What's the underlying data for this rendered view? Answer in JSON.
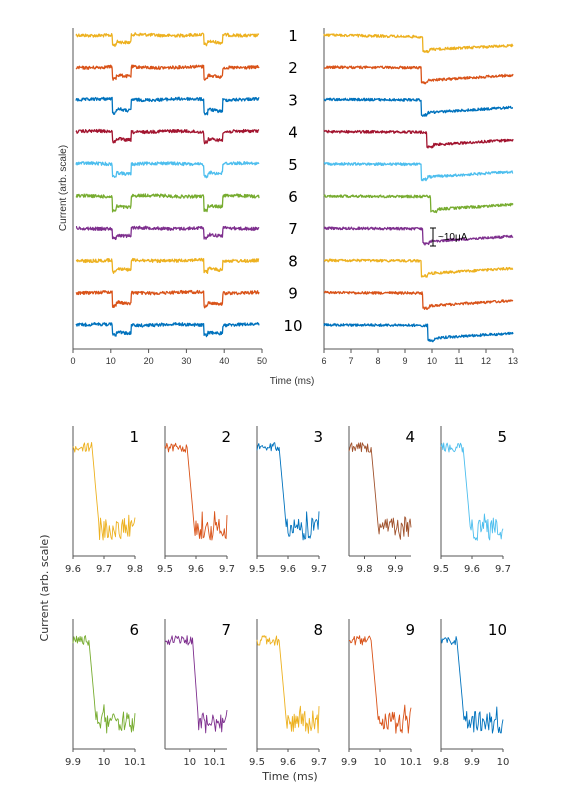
{
  "colors": [
    "#EDB120",
    "#D95319",
    "#0072BD",
    "#A2142F",
    "#4DBEEE",
    "#77AC30",
    "#7E2F8E",
    "#EDB120",
    "#D95319",
    "#0072BD"
  ],
  "inset_colors": [
    "#EDB120",
    "#D95319",
    "#0072BD",
    "#A0522D",
    "#4DBEEE",
    "#77AC30",
    "#7E2F8E",
    "#EDB120",
    "#D95319",
    "#0072BD"
  ],
  "top_panel": {
    "ylabel": "Current (arb. scale)",
    "xlabel": "Time (ms)",
    "trace_labels": [
      "1",
      "2",
      "3",
      "4",
      "5",
      "6",
      "7",
      "8",
      "9",
      "10"
    ],
    "scale_bar_label": "~10μA"
  },
  "bottom_panel": {
    "ylabel": "Current (arb. scale)",
    "xlabel": "Time (ms)",
    "inset_labels": [
      "1",
      "2",
      "3",
      "4",
      "5",
      "6",
      "7",
      "8",
      "9",
      "10"
    ]
  },
  "chart_data": [
    {
      "type": "line",
      "panel": "left-overview",
      "xlim": [
        0,
        50
      ],
      "xticks": [
        0,
        10,
        20,
        30,
        40,
        50
      ],
      "xtick_labels": [
        "0",
        "10",
        "20",
        "30",
        "40",
        "50"
      ],
      "series_count": 10,
      "step_windows_ms": [
        [
          10,
          15
        ],
        [
          35,
          40
        ]
      ]
    },
    {
      "type": "line",
      "panel": "right-zoom",
      "xlim": [
        6,
        13
      ],
      "xticks": [
        6,
        7,
        8,
        9,
        10,
        11,
        12,
        13
      ],
      "xtick_labels": [
        "6",
        "7",
        "8",
        "9",
        "10",
        "11",
        "12",
        "13"
      ],
      "series_count": 10,
      "step_times_ms": [
        9.65,
        9.6,
        9.6,
        9.8,
        9.6,
        9.95,
        9.65,
        9.6,
        9.65,
        9.85
      ]
    },
    {
      "type": "line",
      "panel": "insets",
      "insets": [
        {
          "label": "1",
          "xlim": [
            9.6,
            9.8
          ],
          "xtick_labels": [
            "9.6",
            "9.7",
            "9.8"
          ],
          "step": 9.67
        },
        {
          "label": "2",
          "xlim": [
            9.5,
            9.7
          ],
          "xtick_labels": [
            "9.5",
            "9.6",
            "9.7"
          ],
          "step": 9.58
        },
        {
          "label": "3",
          "xlim": [
            9.5,
            9.7
          ],
          "xtick_labels": [
            "9.5",
            "9.6",
            "9.7"
          ],
          "step": 9.58
        },
        {
          "label": "4",
          "xlim": [
            9.75,
            9.95
          ],
          "xtick_labels": [
            "9.8",
            "9.9"
          ],
          "xticks": [
            9.8,
            9.9
          ],
          "step": 9.83
        },
        {
          "label": "5",
          "xlim": [
            9.5,
            9.7
          ],
          "xtick_labels": [
            "9.5",
            "9.6",
            "9.7"
          ],
          "step": 9.58
        },
        {
          "label": "6",
          "xlim": [
            9.9,
            10.1
          ],
          "xtick_labels": [
            "9.9",
            "10",
            "10.1"
          ],
          "step": 9.96
        },
        {
          "label": "7",
          "xlim": [
            9.9,
            10.15
          ],
          "xtick_labels": [
            "10",
            "10.1"
          ],
          "xticks": [
            10,
            10.1
          ],
          "step": 10.02
        },
        {
          "label": "8",
          "xlim": [
            9.5,
            9.7
          ],
          "xtick_labels": [
            "9.5",
            "9.6",
            "9.7"
          ],
          "step": 9.58
        },
        {
          "label": "9",
          "xlim": [
            9.9,
            10.1
          ],
          "xtick_labels": [
            "9.9",
            "10",
            "10.1"
          ],
          "step": 9.98
        },
        {
          "label": "10",
          "xlim": [
            9.8,
            10.0
          ],
          "xtick_labels": [
            "9.8",
            "9.9",
            "10"
          ],
          "step": 9.86
        }
      ]
    }
  ]
}
